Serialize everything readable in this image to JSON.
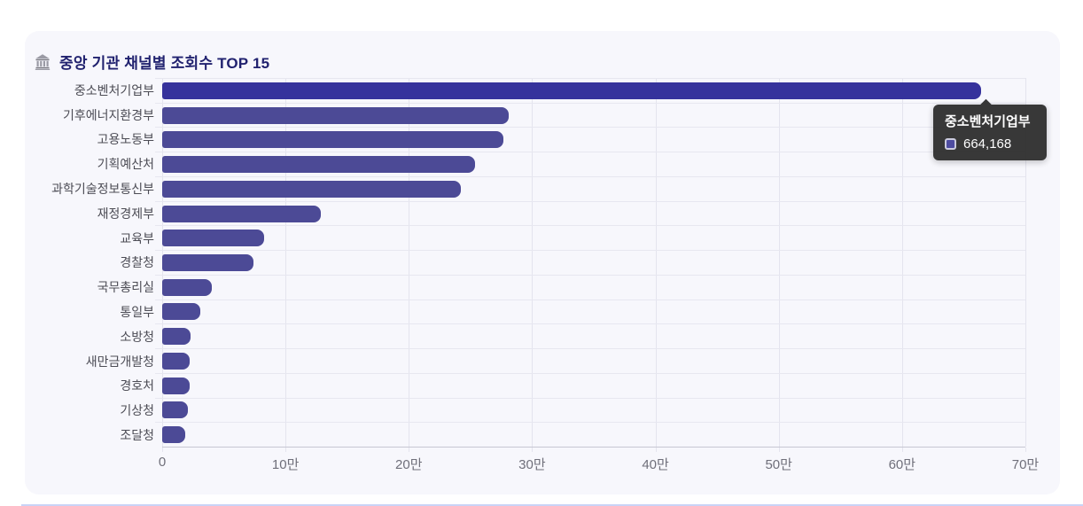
{
  "header": {
    "icon": "classical-building-icon",
    "title": "중앙 기관 채널별 조회수 TOP 15"
  },
  "colors": {
    "card_bg": "#f7f7fc",
    "title_color": "#21226f",
    "bar_color": "#4c4a96",
    "bar_highlight": "#36329c",
    "grid_color": "#e4e4ee",
    "cat_label_color": "#4c4c55",
    "tick_label_color": "#6f6f7a",
    "tooltip_bg": "#2e2e2e",
    "swatch_fill": "#45439d",
    "bottom_line": "#c9d3f6"
  },
  "chart_data": {
    "type": "bar",
    "orientation": "horizontal",
    "title": "중앙 기관 채널별 조회수 TOP 15",
    "categories": [
      "중소벤처기업부",
      "기후에너지환경부",
      "고용노동부",
      "기획예산처",
      "과학기술정보통신부",
      "재정경제부",
      "교육부",
      "경찰청",
      "국무총리실",
      "통일부",
      "소방청",
      "새만금개발청",
      "경호처",
      "기상청",
      "조달청"
    ],
    "values": [
      664168,
      281000,
      277000,
      254000,
      242000,
      129000,
      83000,
      74000,
      40000,
      31000,
      23000,
      22500,
      22000,
      21000,
      19000
    ],
    "xlim": [
      0,
      700000
    ],
    "x_ticks": [
      {
        "value": 0,
        "label": "0"
      },
      {
        "value": 100000,
        "label": "10만"
      },
      {
        "value": 200000,
        "label": "20만"
      },
      {
        "value": 300000,
        "label": "30만"
      },
      {
        "value": 400000,
        "label": "40만"
      },
      {
        "value": 500000,
        "label": "50만"
      },
      {
        "value": 600000,
        "label": "60만"
      },
      {
        "value": 700000,
        "label": "70만"
      }
    ],
    "highlighted_index": 0,
    "grid": "on",
    "legend": "none"
  },
  "tooltip": {
    "title": "중소벤처기업부",
    "value": "664,168"
  }
}
